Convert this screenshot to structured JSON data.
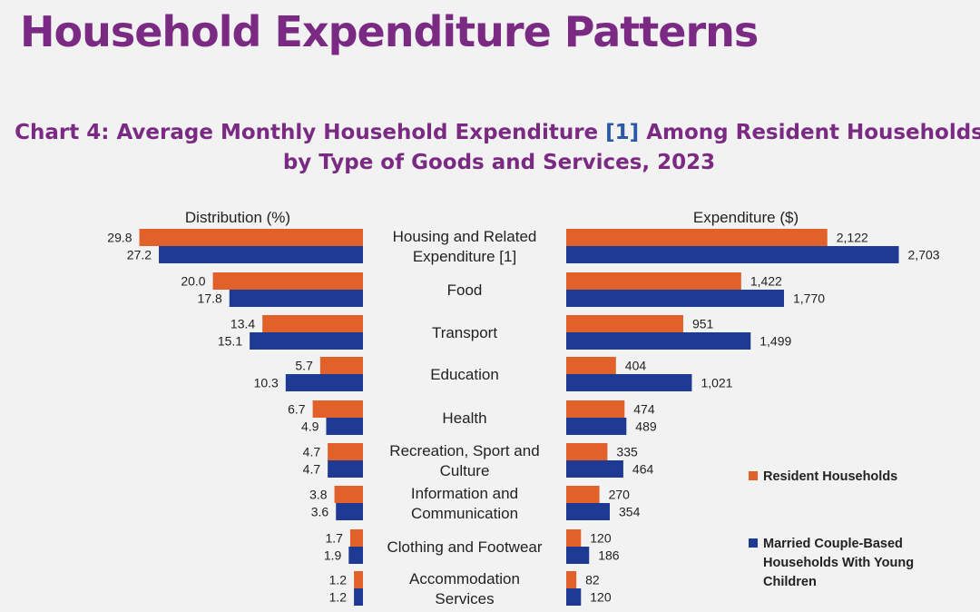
{
  "page_title": "Household Expenditure Patterns",
  "chart_title": {
    "line1_before": "Chart 4: Average Monthly Household Expenditure ",
    "line1_ref": "[1]",
    "line1_after": " Among Resident Households",
    "line2": "by Type of Goods and Services, 2023"
  },
  "colors": {
    "resident": "#e2612a",
    "married": "#1f3a93",
    "title": "#7b2a83"
  },
  "chart_data": [
    {
      "type": "bar",
      "orientation": "horizontal",
      "direction": "right-to-left",
      "panel_title": "Distribution (%)",
      "categories": [
        [
          "Housing and Related",
          "Expenditure [1]"
        ],
        [
          "Food"
        ],
        [
          "Transport"
        ],
        [
          "Education"
        ],
        [
          "Health"
        ],
        [
          "Recreation, Sport and",
          "Culture"
        ],
        [
          "Information and",
          "Communication"
        ],
        [
          "Clothing and Footwear"
        ],
        [
          "Accommodation",
          "Services"
        ]
      ],
      "series": [
        {
          "name": "Resident Households",
          "values": [
            29.8,
            20.0,
            13.4,
            5.7,
            6.7,
            4.7,
            3.8,
            1.7,
            1.2
          ],
          "labels": [
            "29.8",
            "20.0",
            "13.4",
            "5.7",
            "6.7",
            "4.7",
            "3.8",
            "1.7",
            "1.2"
          ]
        },
        {
          "name": "Married Couple-Based Households With Young Children",
          "values": [
            27.2,
            17.8,
            15.1,
            10.3,
            4.9,
            4.7,
            3.6,
            1.9,
            1.2
          ],
          "labels": [
            "27.2",
            "17.8",
            "15.1",
            "10.3",
            "4.9",
            "4.7",
            "3.6",
            "1.9",
            "1.2"
          ]
        }
      ]
    },
    {
      "type": "bar",
      "orientation": "horizontal",
      "direction": "left-to-right",
      "panel_title": "Expenditure ($)",
      "series": [
        {
          "name": "Resident Households",
          "values": [
            2122,
            1422,
            951,
            404,
            474,
            335,
            270,
            120,
            82
          ],
          "labels": [
            "2,122",
            "1,422",
            "951",
            "404",
            "474",
            "335",
            "270",
            "120",
            "82"
          ]
        },
        {
          "name": "Married Couple-Based Households With Young Children",
          "values": [
            2703,
            1770,
            1499,
            1021,
            489,
            464,
            354,
            186,
            120
          ],
          "labels": [
            "2,703",
            "1,770",
            "1,499",
            "1,021",
            "489",
            "464",
            "354",
            "186",
            "120"
          ]
        }
      ]
    }
  ],
  "legend": {
    "placement": "right",
    "items": [
      {
        "lines": [
          "Resident Households"
        ],
        "color": "#e2612a"
      },
      {
        "lines": [
          "Married Couple-Based",
          "Households With Young",
          "Children"
        ],
        "color": "#1f3a93"
      }
    ]
  }
}
